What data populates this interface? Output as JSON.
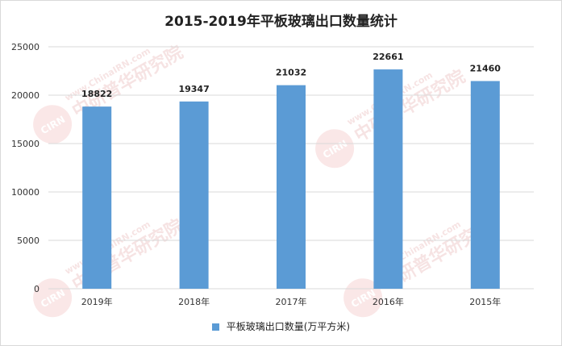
{
  "chart_data": {
    "type": "bar",
    "title": "2015-2019年平板玻璃出口数量统计",
    "categories": [
      "2019年",
      "2018年",
      "2017年",
      "2016年",
      "2015年"
    ],
    "series": [
      {
        "name": "平板玻璃出口数量(万平方米)",
        "values": [
          18822,
          19347,
          21032,
          22661,
          21460
        ],
        "color": "#5b9bd5"
      }
    ],
    "data_labels": [
      "18822",
      "19347",
      "21032",
      "22661",
      "21460"
    ],
    "yticks": [
      "0",
      "5000",
      "10000",
      "15000",
      "20000",
      "25000"
    ],
    "ylim": [
      0,
      25000
    ],
    "grid": true,
    "legend": "bottom"
  },
  "watermark": {
    "brand": "中研普华研究院",
    "url": "www.ChinaIRN.com",
    "logo_text": "CIRN"
  }
}
